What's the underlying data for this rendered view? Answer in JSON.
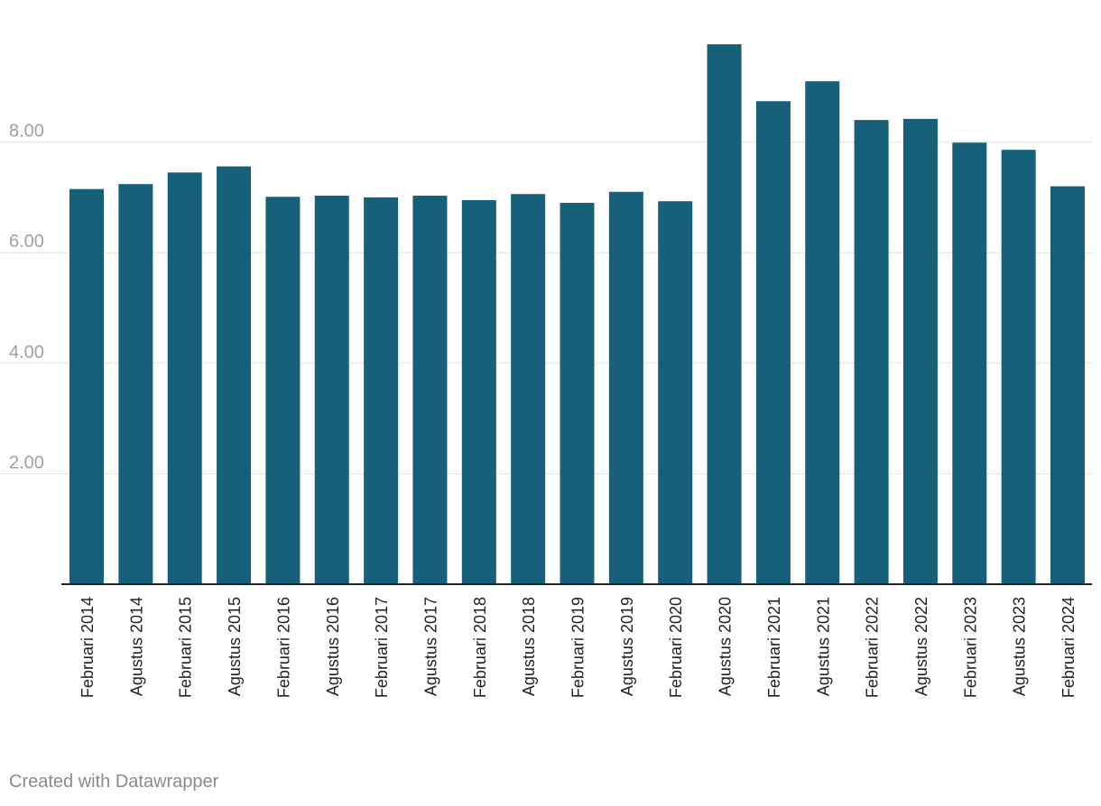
{
  "chart_data": {
    "type": "bar",
    "categories": [
      "Februari 2014",
      "Agustus 2014",
      "Februari 2015",
      "Agustus 2015",
      "Februari 2016",
      "Agustus 2016",
      "Februari 2017",
      "Agustus 2017",
      "Februari 2018",
      "Agustus 2018",
      "Februari 2019",
      "Agustus 2019",
      "Februari 2020",
      "Agustus 2020",
      "Februari 2021",
      "Agustus 2021",
      "Februari 2022",
      "Agustus 2022",
      "Februari 2023",
      "Agustus 2023",
      "Februari 2024"
    ],
    "values": [
      7.15,
      7.24,
      7.45,
      7.56,
      7.01,
      7.03,
      7.0,
      7.03,
      6.95,
      7.06,
      6.9,
      7.1,
      6.93,
      9.77,
      8.74,
      9.1,
      8.4,
      8.42,
      7.99,
      7.86,
      7.2
    ],
    "yticks": [
      2,
      4,
      6,
      8
    ],
    "ytick_labels": [
      "2.00",
      "4.00",
      "6.00",
      "8.00"
    ],
    "ylim": [
      0,
      10
    ],
    "grid": true,
    "bar_color": "#17607a",
    "title": "",
    "xlabel": "",
    "ylabel": ""
  },
  "footer": {
    "credit": "Created with Datawrapper"
  }
}
